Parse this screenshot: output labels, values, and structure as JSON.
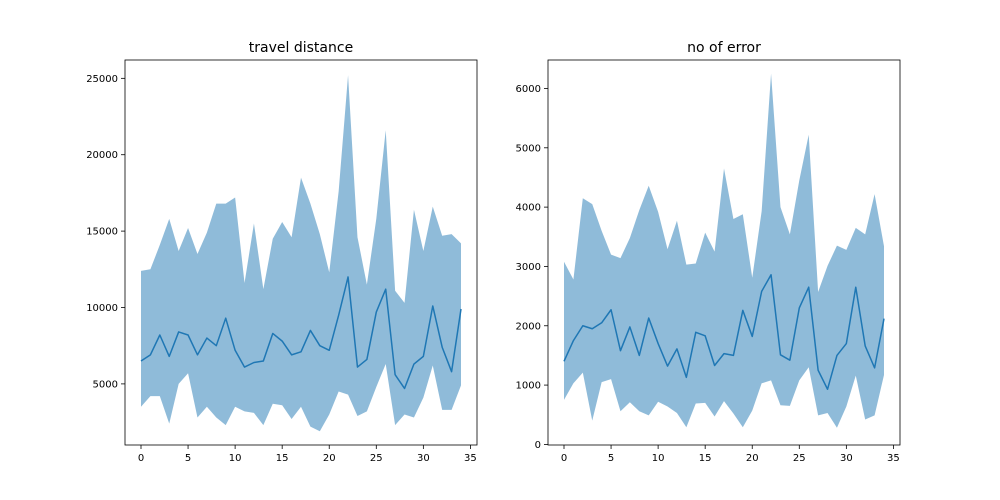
{
  "colors": {
    "line": "#1f77b4",
    "band": "#1f77b4",
    "band_opacity": 0.5,
    "axes": "#000000"
  },
  "chart_data": [
    {
      "type": "area",
      "title": "travel distance",
      "xlabel": "",
      "ylabel": "",
      "grid": false,
      "xlim": [
        -1.7,
        35.7
      ],
      "ylim": [
        1000,
        26200
      ],
      "xticks": [
        0,
        5,
        10,
        15,
        20,
        25,
        30,
        35
      ],
      "yticks": [
        5000,
        10000,
        15000,
        20000,
        25000
      ],
      "x": [
        0,
        1,
        2,
        3,
        4,
        5,
        6,
        7,
        8,
        9,
        10,
        11,
        12,
        13,
        14,
        15,
        16,
        17,
        18,
        19,
        20,
        21,
        22,
        23,
        24,
        25,
        26,
        27,
        28,
        29,
        30,
        31,
        32,
        33,
        34
      ],
      "mean": [
        6500,
        6900,
        8200,
        6800,
        8400,
        8200,
        6900,
        8000,
        7500,
        9300,
        7200,
        6100,
        6400,
        6500,
        8300,
        7800,
        6900,
        7100,
        8500,
        7500,
        7200,
        9500,
        12000,
        6100,
        6600,
        9700,
        11200,
        5600,
        4700,
        6300,
        6800,
        10100,
        7400,
        5800,
        9900
      ],
      "upper": [
        12400,
        12500,
        14100,
        15800,
        13700,
        15200,
        13500,
        14900,
        16800,
        16800,
        17200,
        11600,
        15500,
        11200,
        14500,
        15600,
        14600,
        18500,
        16800,
        14800,
        12300,
        17600,
        25200,
        14600,
        11500,
        15800,
        21600,
        11100,
        10300,
        16400,
        13700,
        16600,
        14700,
        14800,
        14200
      ],
      "lower": [
        3500,
        4200,
        4200,
        2400,
        5000,
        5700,
        2800,
        3500,
        2800,
        2300,
        3500,
        3200,
        3100,
        2300,
        3700,
        3600,
        2700,
        3500,
        2200,
        1900,
        3000,
        4500,
        4300,
        2900,
        3200,
        4800,
        6300,
        2300,
        3000,
        2800,
        4100,
        6200,
        3300,
        3300,
        4900
      ]
    },
    {
      "type": "area",
      "title": "no of error",
      "xlabel": "",
      "ylabel": "",
      "grid": false,
      "xlim": [
        -1.7,
        35.7
      ],
      "ylim": [
        -10,
        6480
      ],
      "xticks": [
        0,
        5,
        10,
        15,
        20,
        25,
        30,
        35
      ],
      "yticks": [
        0,
        1000,
        2000,
        3000,
        4000,
        5000,
        6000
      ],
      "x": [
        0,
        1,
        2,
        3,
        4,
        5,
        6,
        7,
        8,
        9,
        10,
        11,
        12,
        13,
        14,
        15,
        16,
        17,
        18,
        19,
        20,
        21,
        22,
        23,
        24,
        25,
        26,
        27,
        28,
        29,
        30,
        31,
        32,
        33,
        34
      ],
      "mean": [
        1400,
        1750,
        2000,
        1950,
        2050,
        2270,
        1580,
        1980,
        1500,
        2130,
        1700,
        1320,
        1610,
        1130,
        1890,
        1830,
        1330,
        1530,
        1500,
        2260,
        1820,
        2580,
        2860,
        1510,
        1420,
        2300,
        2650,
        1250,
        930,
        1500,
        1700,
        2650,
        1660,
        1290,
        2120
      ],
      "upper": [
        3080,
        2780,
        4150,
        4050,
        3600,
        3200,
        3140,
        3480,
        3950,
        4360,
        3920,
        3290,
        3770,
        3030,
        3050,
        3570,
        3250,
        4650,
        3800,
        3880,
        2810,
        3930,
        6250,
        4000,
        3540,
        4450,
        5220,
        2570,
        3010,
        3350,
        3280,
        3650,
        3540,
        4220,
        3340
      ],
      "lower": [
        750,
        1030,
        1210,
        400,
        1050,
        1100,
        560,
        710,
        560,
        490,
        720,
        640,
        530,
        290,
        690,
        700,
        470,
        730,
        520,
        290,
        570,
        1030,
        1080,
        660,
        650,
        1080,
        1300,
        490,
        530,
        280,
        640,
        1160,
        420,
        490,
        1170
      ]
    }
  ]
}
